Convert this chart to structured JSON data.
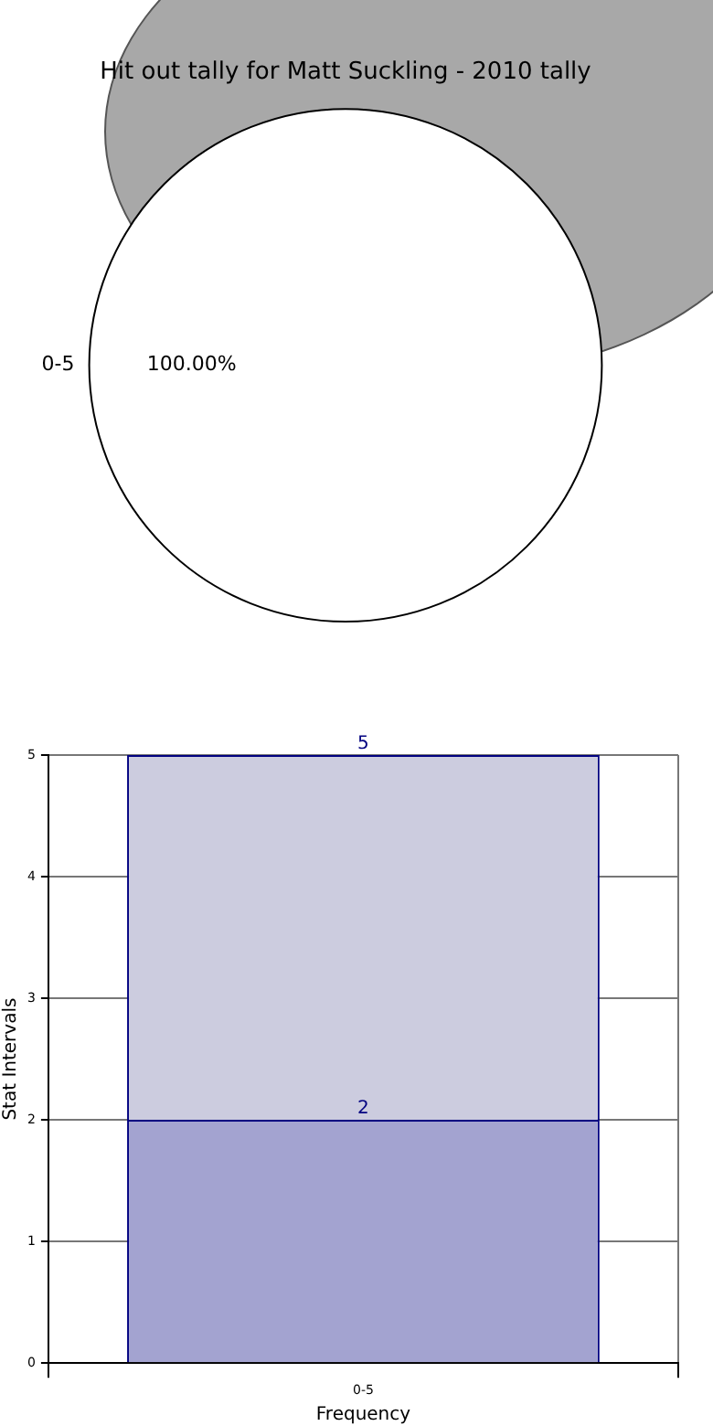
{
  "chart_data": [
    {
      "type": "pie",
      "title": "Hit out tally for Matt Suckling - 2010 tally",
      "categories": [
        "0-5"
      ],
      "values": [
        100
      ],
      "colors": [
        "#ffffff"
      ],
      "value_labels": [
        "100.00%"
      ]
    },
    {
      "type": "bar",
      "categories": [
        "0-5"
      ],
      "series": [
        {
          "color": "#a3a3d0",
          "values": [
            2
          ],
          "value_labels": [
            "2"
          ]
        },
        {
          "color": "#ccccdf",
          "values": [
            3
          ]
        }
      ],
      "stacked": true,
      "totals": [
        "5"
      ],
      "xlabel": "Frequency",
      "ylabel": "Stat Intervals",
      "ylim": [
        0,
        5
      ],
      "yticks": [
        0,
        1,
        2,
        3,
        4,
        5
      ],
      "grid": true
    }
  ]
}
